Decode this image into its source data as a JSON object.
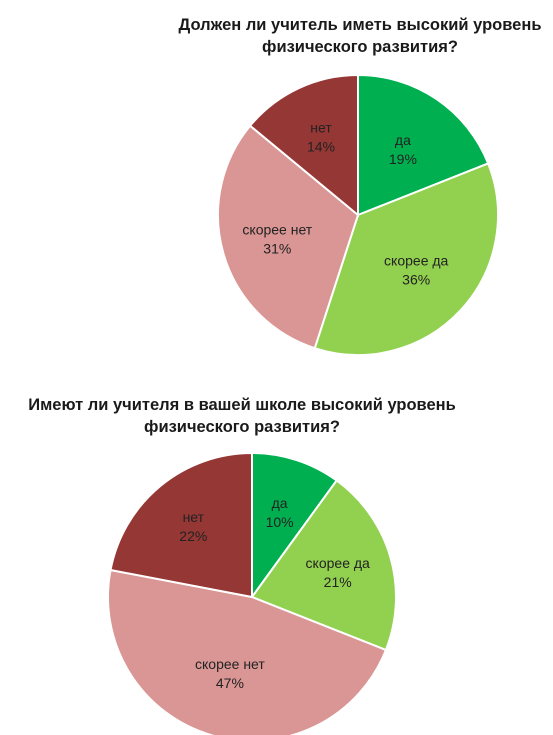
{
  "chart_data": [
    {
      "type": "pie",
      "title_lines": [
        "Должен ли учитель иметь высокий уровень",
        "физического развития?"
      ],
      "slices": [
        {
          "label": "да",
          "value": 19,
          "percent": "19%",
          "color": "#00b050"
        },
        {
          "label": "скорее да",
          "value": 36,
          "percent": "36%",
          "color": "#92d050"
        },
        {
          "label": "скорее нет",
          "value": 31,
          "percent": "31%",
          "color": "#d99694"
        },
        {
          "label": "нет",
          "value": 14,
          "percent": "14%",
          "color": "#953735"
        }
      ]
    },
    {
      "type": "pie",
      "title_lines": [
        "Имеют ли учителя в вашей школе высокий уровень",
        "физического развития?"
      ],
      "slices": [
        {
          "label": "да",
          "value": 10,
          "percent": "10%",
          "color": "#00b050"
        },
        {
          "label": "скорее да",
          "value": 21,
          "percent": "21%",
          "color": "#92d050"
        },
        {
          "label": "скорее нет",
          "value": 47,
          "percent": "47%",
          "color": "#d99694"
        },
        {
          "label": "нет",
          "value": 22,
          "percent": "22%",
          "color": "#953735"
        }
      ]
    }
  ]
}
